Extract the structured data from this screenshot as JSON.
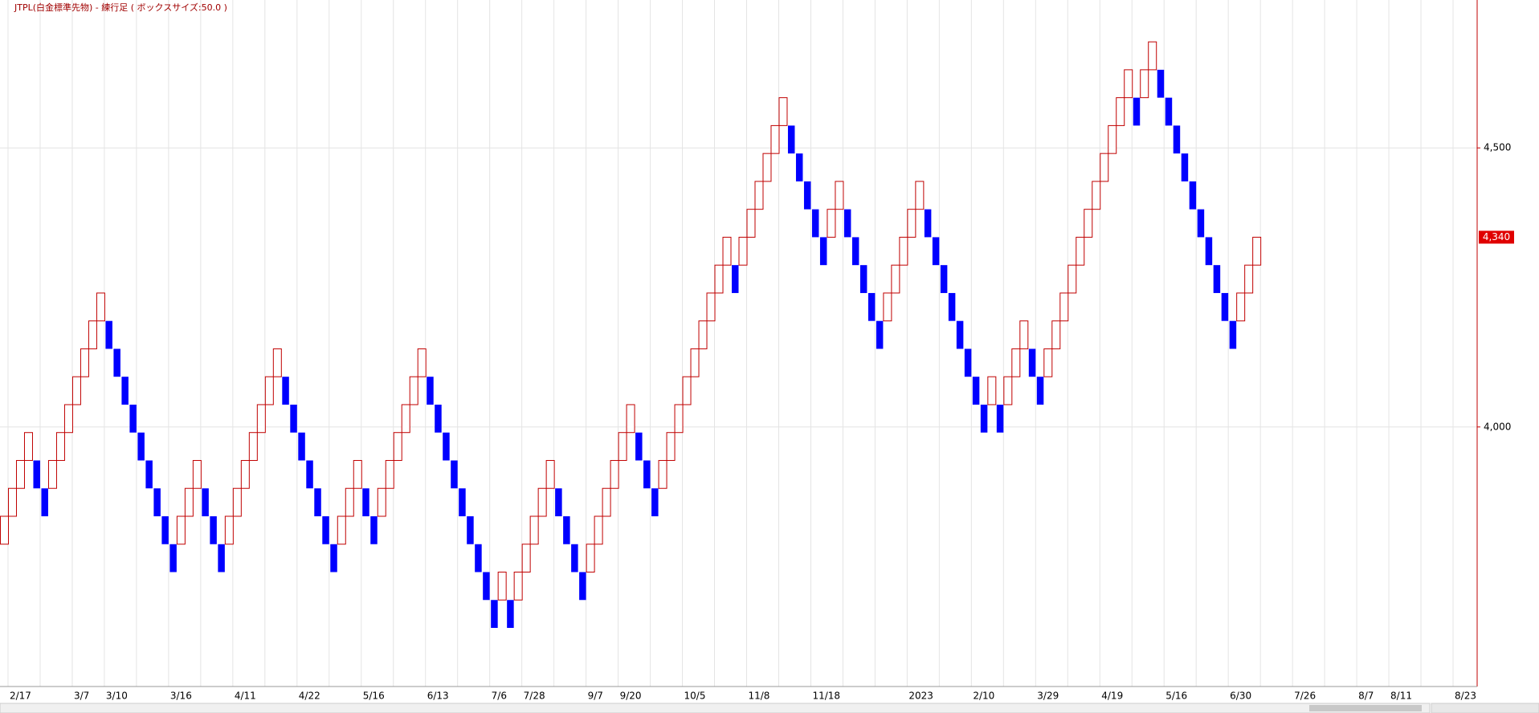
{
  "chart_data": {
    "type": "renko",
    "title": "JTPL(白金標準先物) - 練行足 ( ボックスサイズ:50.0 )",
    "up_color": "#c00000",
    "down_color": "#0000ff",
    "categories": [
      null,
      "2/17",
      null,
      null,
      null,
      null,
      null,
      null,
      null,
      "3/7",
      null,
      null,
      null,
      "3/10",
      null,
      null,
      null,
      null,
      null,
      null,
      null,
      "3/16",
      null,
      null,
      null,
      null,
      null,
      null,
      null,
      "4/11",
      null,
      null,
      null,
      null,
      null,
      null,
      null,
      "4/22",
      null,
      null,
      null,
      null,
      null,
      null,
      null,
      "5/16",
      null,
      null,
      null,
      null,
      null,
      null,
      null,
      "6/13",
      null,
      null,
      null,
      null,
      null,
      null,
      null,
      "7/6",
      null,
      null,
      null,
      "7/28",
      null,
      null,
      null,
      null,
      null,
      null,
      null,
      "9/7",
      null,
      null,
      null,
      "9/20",
      null,
      null,
      null,
      null,
      null,
      null,
      null,
      "10/5",
      null,
      null,
      null,
      null,
      null,
      null,
      null,
      "11/8",
      null,
      null,
      null,
      null,
      null,
      null,
      null,
      "11/18",
      null,
      null,
      null,
      null,
      null,
      null,
      null,
      null,
      null,
      null,
      null,
      "2023",
      null,
      null,
      null,
      null,
      null,
      null,
      null,
      "2/10",
      null,
      null,
      null,
      null,
      null,
      null,
      null,
      "3/29",
      null,
      null,
      null,
      null,
      null,
      null,
      null,
      "4/19",
      null,
      null,
      null,
      null,
      null,
      null,
      null,
      "5/16",
      null,
      null,
      null,
      null,
      null,
      null,
      null,
      "6/30",
      null,
      null,
      null,
      null,
      null,
      null,
      null,
      "7/26",
      null,
      null,
      null,
      null,
      null,
      null,
      null,
      "8/7",
      null,
      null,
      null,
      "8/11",
      null,
      null,
      null,
      null,
      null,
      null,
      null,
      "8/23",
      null,
      null
    ],
    "open": [
      3790,
      3840,
      3890,
      3940,
      3940,
      3890,
      3890,
      3940,
      3990,
      4040,
      4090,
      4140,
      4190,
      4190,
      4140,
      4090,
      4040,
      3990,
      3940,
      3890,
      3840,
      3790,
      3790,
      3840,
      3890,
      3890,
      3840,
      3790,
      3790,
      3840,
      3890,
      3940,
      3990,
      4040,
      4090,
      4090,
      4040,
      3990,
      3940,
      3890,
      3840,
      3790,
      3790,
      3840,
      3890,
      3890,
      3840,
      3840,
      3890,
      3940,
      3990,
      4040,
      4090,
      4090,
      4040,
      3990,
      3940,
      3890,
      3840,
      3790,
      3740,
      3690,
      3690,
      3690,
      3690,
      3740,
      3790,
      3840,
      3890,
      3890,
      3840,
      3790,
      3740,
      3740,
      3790,
      3840,
      3890,
      3940,
      3990,
      3990,
      3940,
      3890,
      3890,
      3940,
      3990,
      4040,
      4090,
      4140,
      4190,
      4240,
      4290,
      4290,
      4290,
      4340,
      4390,
      4440,
      4490,
      4540,
      4540,
      4490,
      4440,
      4390,
      4340,
      4340,
      4390,
      4390,
      4340,
      4290,
      4240,
      4190,
      4190,
      4240,
      4290,
      4340,
      4390,
      4390,
      4340,
      4290,
      4240,
      4190,
      4140,
      4090,
      4040,
      4040,
      4040,
      4040,
      4090,
      4140,
      4140,
      4090,
      4090,
      4140,
      4190,
      4240,
      4290,
      4340,
      4390,
      4440,
      4490,
      4540,
      4590,
      4590,
      4590,
      4640,
      4640,
      4590,
      4540,
      4490,
      4440,
      4390,
      4340,
      4290,
      4240,
      4190,
      4190,
      4240,
      4290,
      null,
      null,
      null,
      null,
      null,
      null,
      null,
      null,
      null,
      null,
      null,
      null,
      null,
      null,
      null,
      null,
      null,
      null,
      null,
      null,
      null,
      null,
      null,
      null,
      null,
      null,
      null
    ],
    "close": [
      3840,
      3890,
      3940,
      3990,
      3890,
      3840,
      3940,
      3990,
      4040,
      4090,
      4140,
      4190,
      4240,
      4140,
      4090,
      4040,
      3990,
      3940,
      3890,
      3840,
      3790,
      3740,
      3840,
      3890,
      3940,
      3840,
      3790,
      3740,
      3840,
      3890,
      3940,
      3990,
      4040,
      4090,
      4140,
      4040,
      3990,
      3940,
      3890,
      3840,
      3790,
      3740,
      3840,
      3890,
      3940,
      3840,
      3790,
      3890,
      3940,
      3990,
      4040,
      4090,
      4140,
      4040,
      3990,
      3940,
      3890,
      3840,
      3790,
      3740,
      3690,
      3640,
      3740,
      3640,
      3740,
      3790,
      3840,
      3890,
      3940,
      3840,
      3790,
      3740,
      3690,
      3790,
      3840,
      3890,
      3940,
      3990,
      4040,
      3940,
      3890,
      3840,
      3940,
      3990,
      4040,
      4090,
      4140,
      4190,
      4240,
      4290,
      4340,
      4240,
      4340,
      4390,
      4440,
      4490,
      4540,
      4590,
      4490,
      4440,
      4390,
      4340,
      4290,
      4390,
      4440,
      4340,
      4290,
      4240,
      4190,
      4140,
      4240,
      4290,
      4340,
      4390,
      4440,
      4340,
      4290,
      4240,
      4190,
      4140,
      4090,
      4040,
      3990,
      4090,
      3990,
      4090,
      4140,
      4190,
      4090,
      4040,
      4140,
      4190,
      4240,
      4290,
      4340,
      4390,
      4440,
      4490,
      4540,
      4590,
      4640,
      4540,
      4640,
      4690,
      4590,
      4540,
      4490,
      4440,
      4390,
      4340,
      4290,
      4240,
      4190,
      4140,
      4240,
      4290,
      4340,
      null,
      null,
      null,
      null,
      null,
      null,
      null,
      null,
      null,
      null,
      null,
      null,
      null,
      null,
      null,
      null,
      null,
      null,
      null,
      null,
      null,
      null,
      null,
      null,
      null,
      null,
      null
    ],
    "ylim": [
      3535,
      4765
    ],
    "yticks": [
      {
        "value": 4000,
        "label": "4,000"
      },
      {
        "value": 4500,
        "label": "4,500"
      }
    ],
    "last_price": {
      "value": 4340,
      "label": "4,340"
    },
    "grid": true
  }
}
